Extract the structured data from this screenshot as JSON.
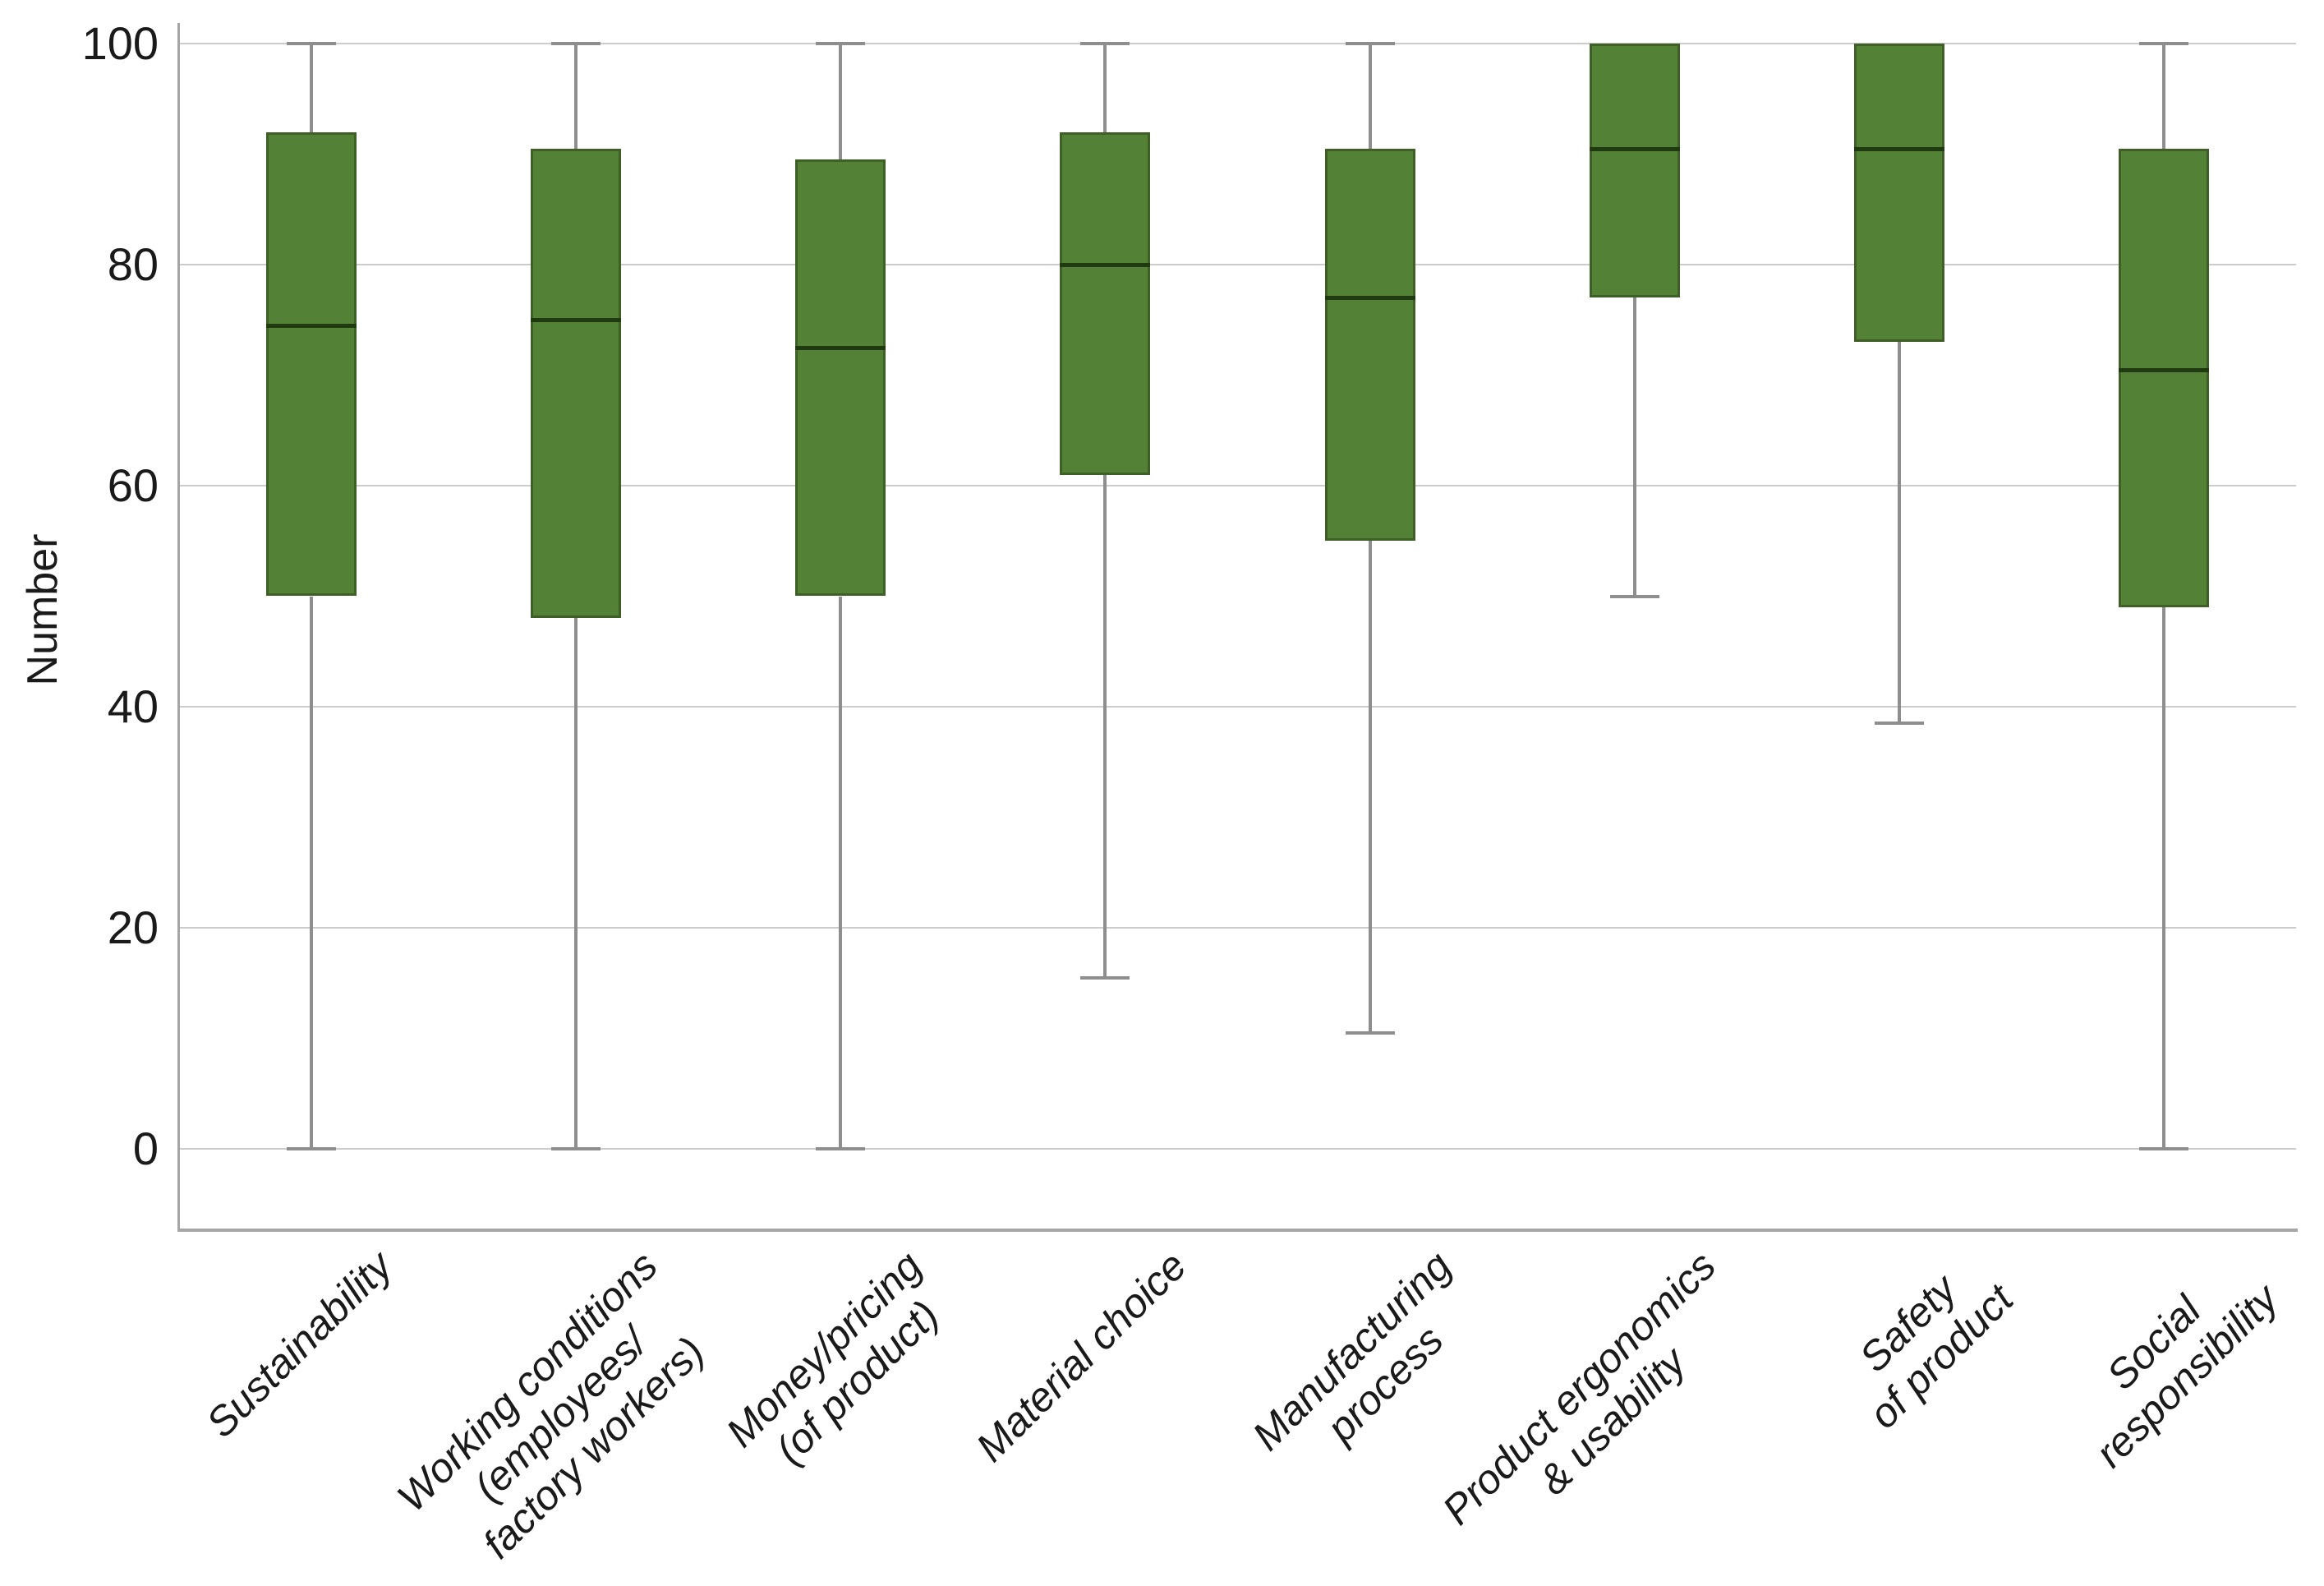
{
  "figure": {
    "background": "#ffffff"
  },
  "chart_data": {
    "type": "boxplot",
    "title": "",
    "xlabel": "",
    "ylabel": "Number",
    "yticks": [
      0,
      20,
      40,
      60,
      80,
      100
    ],
    "ylim": [
      0,
      100
    ],
    "ylim_drawn": [
      -7.5,
      102
    ],
    "grid": "horizontal",
    "legend": "none",
    "categories": [
      {
        "label": "Sustainability",
        "lines": [
          "Sustainability"
        ]
      },
      {
        "label": "Working conditions (employees/ factory workers)",
        "lines": [
          "Working conditions",
          "(employees/",
          "factory workers)"
        ]
      },
      {
        "label": "Money/pricing (of product)",
        "lines": [
          "Money/pricing",
          "(of product)"
        ]
      },
      {
        "label": "Material choice",
        "lines": [
          "Material choice"
        ]
      },
      {
        "label": "Manufacturing process",
        "lines": [
          "Manufacturing",
          "process"
        ]
      },
      {
        "label": "Product ergonomics & usability",
        "lines": [
          "Product ergonomics",
          "& usability"
        ]
      },
      {
        "label": "Safety of product",
        "lines": [
          "Safety",
          "of product"
        ]
      },
      {
        "label": "Social responsibility",
        "lines": [
          "Social",
          "responsibility"
        ]
      }
    ],
    "series": [
      {
        "name": "Sustainability",
        "min": 0,
        "q1": 50,
        "median": 74.5,
        "q3": 92,
        "max": 100
      },
      {
        "name": "Working conditions (employees/ factory workers)",
        "min": 0,
        "q1": 48,
        "median": 75,
        "q3": 90.5,
        "max": 100
      },
      {
        "name": "Money/pricing (of product)",
        "min": 0,
        "q1": 50,
        "median": 72.5,
        "q3": 89.5,
        "max": 100
      },
      {
        "name": "Material choice",
        "min": 15.5,
        "q1": 61,
        "median": 80,
        "q3": 92,
        "max": 100
      },
      {
        "name": "Manufacturing process",
        "min": 10.5,
        "q1": 55,
        "median": 77,
        "q3": 90.5,
        "max": 100
      },
      {
        "name": "Product ergonomics & usability",
        "min": 50,
        "q1": 77,
        "median": 90.5,
        "q3": 100,
        "max": 100
      },
      {
        "name": "Safety of product",
        "min": 38.5,
        "q1": 73,
        "median": 90.5,
        "q3": 100,
        "max": 100
      },
      {
        "name": "Social responsibility",
        "min": 0,
        "q1": 49,
        "median": 70.5,
        "q3": 90.5,
        "max": 100
      }
    ],
    "colors": {
      "box_fill": "#538135",
      "box_border": "#3e6026",
      "median_line": "#1f3a10",
      "whisker": "#8e8e8e",
      "gridline": "#cccccc",
      "axis_line": "#a6a6a6",
      "text": "#1a1a1a"
    }
  }
}
